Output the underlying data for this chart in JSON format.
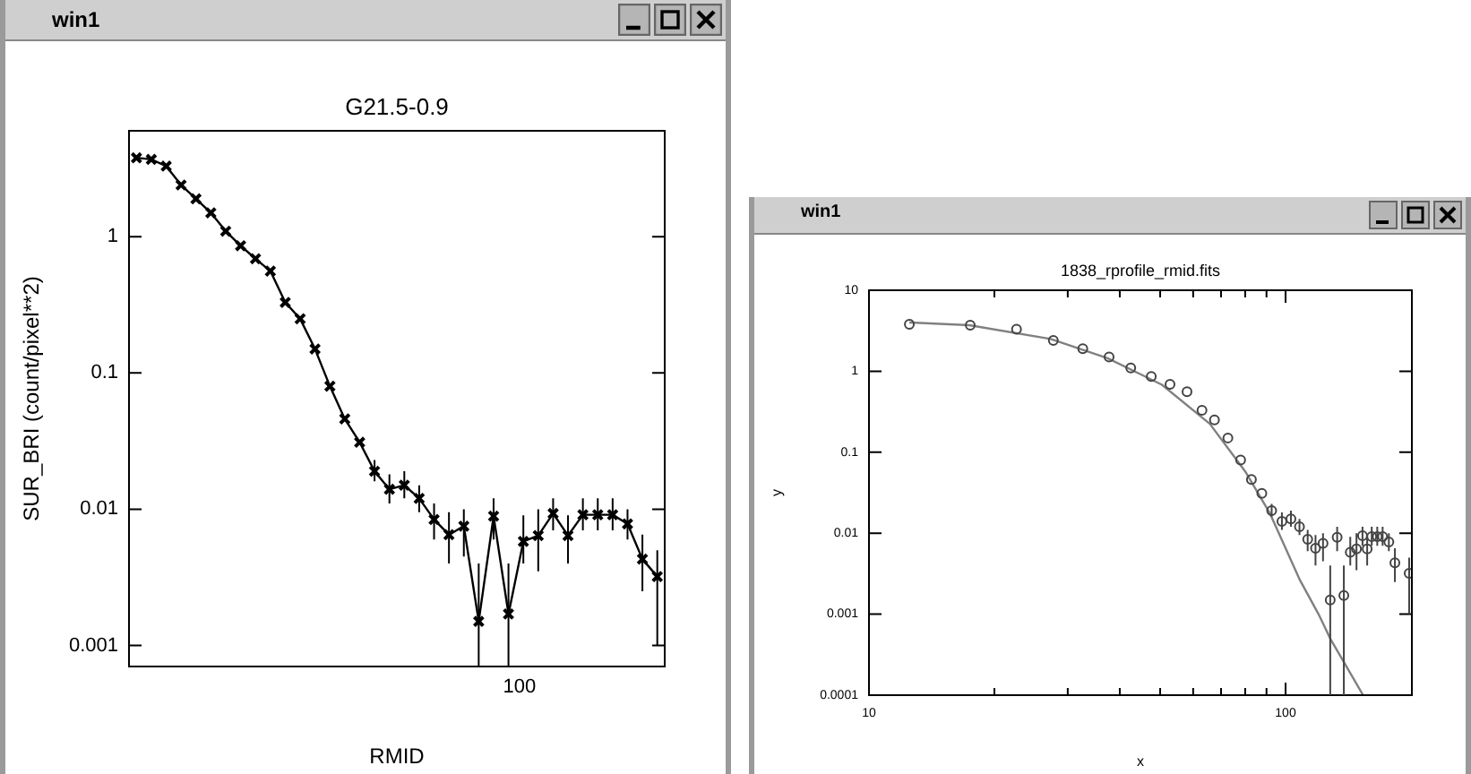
{
  "chart_data": [
    {
      "type": "line",
      "title": "G21.5-0.9",
      "xlabel": "RMID",
      "ylabel": "SUR_BRI (count/pixel**2)",
      "annotations": [
        "win1",
        "100"
      ],
      "log": "y",
      "ylim": [
        0.0007,
        6
      ],
      "categories": [
        null,
        null,
        null,
        null,
        null,
        null,
        null,
        null,
        null,
        null,
        null,
        null,
        null,
        null,
        null,
        null,
        null,
        null,
        null,
        null,
        null,
        null,
        null,
        null,
        null,
        null,
        null,
        null,
        null,
        null,
        null,
        null,
        null,
        null,
        null,
        null
      ],
      "yticks": [
        0.001,
        0.01,
        0.1,
        1
      ],
      "grid": false,
      "legend": false,
      "series": [
        {
          "color": "#000000",
          "marker": "cross",
          "line_style": "solid",
          "values": [
            3.8,
            3.7,
            3.3,
            2.4,
            1.9,
            1.5,
            1.1,
            0.86,
            0.69,
            0.56,
            0.33,
            0.25,
            0.15,
            0.08,
            0.046,
            0.031,
            0.019,
            0.014,
            0.015,
            0.012,
            0.0084,
            0.0065,
            0.0075,
            0.0015,
            0.0089,
            0.0017,
            0.0058,
            0.0064,
            0.0093,
            0.0064,
            0.0091,
            0.0091,
            0.0091,
            0.0078,
            0.0043,
            0.0032
          ],
          "errors": [
            null,
            null,
            null,
            null,
            null,
            null,
            null,
            null,
            null,
            null,
            null,
            null,
            null,
            null,
            null,
            null,
            [
              0.016,
              0.023
            ],
            [
              0.011,
              0.018
            ],
            [
              0.012,
              0.019
            ],
            [
              0.0095,
              0.015
            ],
            [
              0.006,
              0.011
            ],
            [
              0.004,
              0.0095
            ],
            [
              0.0045,
              0.01
            ],
            [
              0.0007,
              0.004
            ],
            [
              0.006,
              0.012
            ],
            [
              0.0007,
              0.004
            ],
            [
              0.004,
              0.009
            ],
            [
              0.0035,
              0.01
            ],
            [
              0.007,
              0.012
            ],
            [
              0.004,
              0.009
            ],
            [
              0.007,
              0.012
            ],
            [
              0.007,
              0.012
            ],
            [
              0.007,
              0.012
            ],
            [
              0.006,
              0.01
            ],
            [
              0.0025,
              0.0065
            ],
            [
              0.001,
              0.005
            ]
          ]
        }
      ]
    },
    {
      "type": "scatter",
      "title": "1838_rprofile_rmid.fits",
      "xlabel": "x",
      "ylabel": "y",
      "annotations": [
        "win1"
      ],
      "log": "xy",
      "xlim": [
        10,
        201
      ],
      "ylim": [
        0.0001,
        10
      ],
      "xticks": [
        10,
        {
          "value": 20,
          "label": null
        },
        {
          "value": 30,
          "label": null
        },
        {
          "value": 40,
          "label": null
        },
        {
          "value": 50,
          "label": null
        },
        {
          "value": 60,
          "label": null
        },
        {
          "value": 70,
          "label": null
        },
        {
          "value": 80,
          "label": null
        },
        {
          "value": 90,
          "label": null
        },
        100
      ],
      "yticks": [
        0.0001,
        0.001,
        0.01,
        0.1,
        1,
        10
      ],
      "grid": false,
      "legend": false,
      "series": [
        {
          "color": "#444444",
          "marker": "circle",
          "x": [
            12.5,
            17.5,
            22.6,
            27.7,
            32.6,
            37.7,
            42.5,
            47.6,
            52.8,
            58,
            63,
            67.5,
            72.7,
            78,
            82.8,
            87.7,
            92.6,
            98,
            103,
            108,
            113,
            118,
            123,
            128,
            133,
            138,
            143,
            148,
            153,
            157,
            161,
            166,
            171,
            177,
            183,
            198
          ],
          "values": [
            3.8,
            3.7,
            3.3,
            2.4,
            1.9,
            1.5,
            1.1,
            0.86,
            0.69,
            0.56,
            0.33,
            0.25,
            0.15,
            0.08,
            0.046,
            0.031,
            0.019,
            0.014,
            0.015,
            0.012,
            0.0084,
            0.0065,
            0.0075,
            0.0015,
            0.0089,
            0.0017,
            0.0058,
            0.0064,
            0.0093,
            0.0064,
            0.0091,
            0.0091,
            0.0091,
            0.0078,
            0.0043,
            0.0032
          ],
          "errors": [
            null,
            null,
            null,
            null,
            null,
            null,
            null,
            null,
            null,
            null,
            null,
            null,
            null,
            null,
            null,
            null,
            [
              0.016,
              0.023
            ],
            [
              0.011,
              0.018
            ],
            [
              0.012,
              0.019
            ],
            [
              0.0095,
              0.015
            ],
            [
              0.006,
              0.011
            ],
            [
              0.004,
              0.0095
            ],
            [
              0.0045,
              0.01
            ],
            [
              0.0001,
              0.004
            ],
            [
              0.006,
              0.012
            ],
            [
              0.0001,
              0.004
            ],
            [
              0.004,
              0.009
            ],
            [
              0.0035,
              0.01
            ],
            [
              0.007,
              0.012
            ],
            [
              0.004,
              0.009
            ],
            [
              0.007,
              0.012
            ],
            [
              0.007,
              0.012
            ],
            [
              0.007,
              0.012
            ],
            [
              0.006,
              0.01
            ],
            [
              0.0025,
              0.0065
            ],
            [
              0.001,
              0.005
            ]
          ]
        },
        {
          "type": "line",
          "color": "#808080",
          "marker": "none",
          "x": [
            12.5,
            17.4,
            27.3,
            37.4,
            50.5,
            65.8,
            80,
            91.6,
            108,
            120,
            128,
            153.5
          ],
          "values": [
            4.0,
            3.7,
            2.5,
            1.45,
            0.68,
            0.224,
            0.058,
            0.0178,
            0.0027,
            0.001,
            0.0005,
            0.0001
          ]
        }
      ]
    }
  ]
}
